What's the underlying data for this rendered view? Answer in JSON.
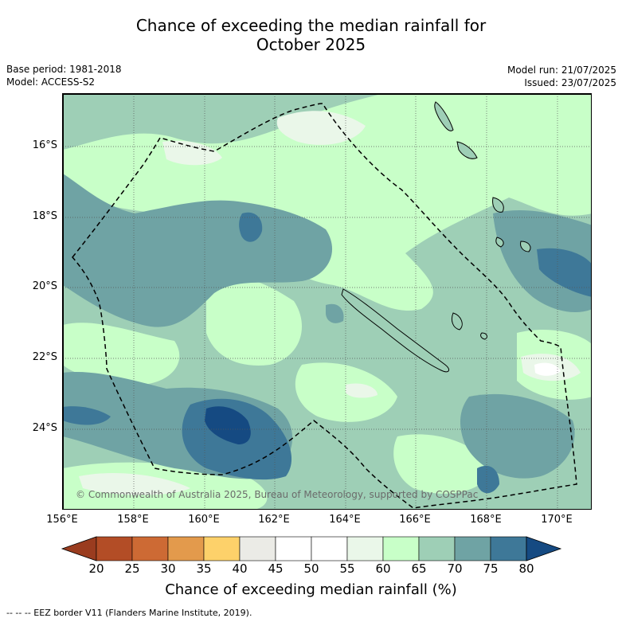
{
  "title_line1": "Chance of exceeding the median rainfall for",
  "title_line2": "October 2025",
  "left_meta": {
    "base_period": "Base period: 1981-2018",
    "model": "Model: ACCESS-S2"
  },
  "right_meta": {
    "model_run": "Model run: 21/07/2025",
    "issued": "Issued: 23/07/2025"
  },
  "copyright": "© Commonwealth of Australia 2025, Bureau of Meteorology, supported by COSPPac",
  "lat_labels": [
    "16°S",
    "18°S",
    "20°S",
    "22°S",
    "24°S"
  ],
  "lon_labels": [
    "156°E",
    "158°E",
    "160°E",
    "162°E",
    "164°E",
    "166°E",
    "168°E",
    "170°E"
  ],
  "colorbar": {
    "ticks": [
      "20",
      "25",
      "30",
      "35",
      "40",
      "45",
      "50",
      "55",
      "60",
      "65",
      "70",
      "75",
      "80"
    ],
    "colors": [
      "#b34d26",
      "#cd6a34",
      "#e39a4c",
      "#fdd16a",
      "#ebebe6",
      "#ffffff",
      "#ffffff",
      "#eaf7e9",
      "#c8ffc8",
      "#9ecfb6",
      "#6fa3a4",
      "#3e7898"
    ],
    "under_color": "#9a3c1f",
    "over_color": "#154a82",
    "title": "Chance of exceeding median rainfall (%)"
  },
  "footer": "--  --  -- EEZ border V11 (Flanders Marine Institute, 2019)."
}
